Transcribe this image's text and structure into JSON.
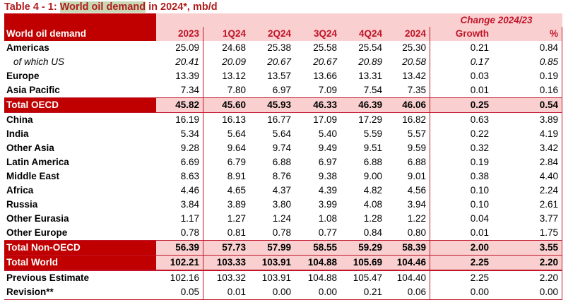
{
  "title": {
    "prefix": "Table 4 - 1: ",
    "highlight": "World oil demand",
    "suffix": " in 2024*, mb/d"
  },
  "header": {
    "change_label": "Change 2024/23",
    "row_label": "World oil demand",
    "columns": [
      "2023",
      "1Q24",
      "2Q24",
      "3Q24",
      "4Q24",
      "2024",
      "Growth",
      "%"
    ]
  },
  "rows": [
    {
      "label": "Americas",
      "values": [
        "25.09",
        "24.68",
        "25.38",
        "25.58",
        "25.54",
        "25.30",
        "0.21",
        "0.84"
      ]
    },
    {
      "label": "of which US",
      "values": [
        "20.41",
        "20.09",
        "20.67",
        "20.67",
        "20.89",
        "20.58",
        "0.17",
        "0.85"
      ]
    },
    {
      "label": "Europe",
      "values": [
        "13.39",
        "13.12",
        "13.57",
        "13.66",
        "13.31",
        "13.42",
        "0.03",
        "0.19"
      ]
    },
    {
      "label": "Asia Pacific",
      "values": [
        "7.34",
        "7.80",
        "6.97",
        "7.09",
        "7.54",
        "7.35",
        "0.01",
        "0.16"
      ]
    },
    {
      "label": "Total OECD",
      "values": [
        "45.82",
        "45.60",
        "45.93",
        "46.33",
        "46.39",
        "46.06",
        "0.25",
        "0.54"
      ]
    },
    {
      "label": "China",
      "values": [
        "16.19",
        "16.13",
        "16.77",
        "17.09",
        "17.29",
        "16.82",
        "0.63",
        "3.89"
      ]
    },
    {
      "label": "India",
      "values": [
        "5.34",
        "5.64",
        "5.64",
        "5.40",
        "5.59",
        "5.57",
        "0.22",
        "4.19"
      ]
    },
    {
      "label": "Other Asia",
      "values": [
        "9.28",
        "9.64",
        "9.74",
        "9.49",
        "9.51",
        "9.59",
        "0.32",
        "3.42"
      ]
    },
    {
      "label": "Latin America",
      "values": [
        "6.69",
        "6.79",
        "6.88",
        "6.97",
        "6.88",
        "6.88",
        "0.19",
        "2.84"
      ]
    },
    {
      "label": "Middle East",
      "values": [
        "8.63",
        "8.91",
        "8.76",
        "9.38",
        "9.00",
        "9.01",
        "0.38",
        "4.40"
      ]
    },
    {
      "label": "Africa",
      "values": [
        "4.46",
        "4.65",
        "4.37",
        "4.39",
        "4.82",
        "4.56",
        "0.10",
        "2.24"
      ]
    },
    {
      "label": "Russia",
      "values": [
        "3.84",
        "3.89",
        "3.80",
        "3.99",
        "4.08",
        "3.94",
        "0.10",
        "2.61"
      ]
    },
    {
      "label": "Other Eurasia",
      "values": [
        "1.17",
        "1.27",
        "1.24",
        "1.08",
        "1.28",
        "1.22",
        "0.04",
        "3.77"
      ]
    },
    {
      "label": "Other Europe",
      "values": [
        "0.78",
        "0.81",
        "0.78",
        "0.77",
        "0.84",
        "0.80",
        "0.01",
        "1.75"
      ]
    },
    {
      "label": "Total Non-OECD",
      "values": [
        "56.39",
        "57.73",
        "57.99",
        "58.55",
        "59.29",
        "58.39",
        "2.00",
        "3.55"
      ]
    },
    {
      "label": "Total World",
      "values": [
        "102.21",
        "103.33",
        "103.91",
        "104.88",
        "105.69",
        "104.46",
        "2.25",
        "2.20"
      ]
    },
    {
      "label": "Previous Estimate",
      "values": [
        "102.16",
        "103.32",
        "103.91",
        "104.88",
        "105.47",
        "104.40",
        "2.25",
        "2.20"
      ]
    },
    {
      "label": "Revision**",
      "values": [
        "0.05",
        "0.01",
        "0.00",
        "0.00",
        "0.21",
        "0.06",
        "0.00",
        "0.00"
      ]
    }
  ],
  "colors": {
    "accent_red": "#c00000",
    "highlight_pink": "#f9cfcf",
    "title_highlight": "#c8d8b4"
  }
}
